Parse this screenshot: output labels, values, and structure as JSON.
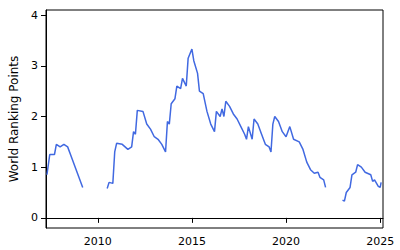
{
  "chart_data": {
    "type": "line",
    "y_label": "World Ranking Points",
    "color": "#4169e1",
    "xlim": [
      2007.25,
      2025.15
    ],
    "xticks": [
      2010,
      2015,
      2020,
      2025
    ],
    "ylim": [
      -0.2,
      4.1
    ],
    "yticks": [
      0,
      1,
      2,
      3,
      4
    ],
    "grid": false,
    "x": [
      2007.3,
      2007.45,
      2007.7,
      2007.8,
      2008.0,
      2008.2,
      2008.4,
      2008.6,
      2008.9,
      2009.2,
      2009.8,
      2010.5,
      2010.6,
      2010.8,
      2010.9,
      2011.0,
      2011.3,
      2011.6,
      2011.8,
      2011.9,
      2012.0,
      2012.1,
      2012.4,
      2012.6,
      2012.8,
      2013.0,
      2013.2,
      2013.4,
      2013.6,
      2013.7,
      2013.8,
      2013.9,
      2014.1,
      2014.2,
      2014.4,
      2014.5,
      2014.7,
      2014.8,
      2015.0,
      2015.1,
      2015.3,
      2015.4,
      2015.6,
      2015.8,
      2016.0,
      2016.2,
      2016.3,
      2016.5,
      2016.6,
      2016.7,
      2016.8,
      2017.0,
      2017.2,
      2017.4,
      2017.6,
      2017.8,
      2017.9,
      2018.0,
      2018.2,
      2018.3,
      2018.5,
      2018.7,
      2018.9,
      2019.1,
      2019.2,
      2019.3,
      2019.4,
      2019.6,
      2019.8,
      2020.0,
      2020.2,
      2020.4,
      2020.7,
      2020.9,
      2021.1,
      2021.3,
      2021.5,
      2021.7,
      2021.8,
      2022.0,
      2022.1,
      2022.5,
      2023.0,
      2023.1,
      2023.2,
      2023.4,
      2023.5,
      2023.7,
      2023.8,
      2024.0,
      2024.2,
      2024.5,
      2024.6,
      2024.7,
      2024.9,
      2025.0,
      2025.05
    ],
    "values": [
      0.85,
      1.25,
      1.25,
      1.45,
      1.4,
      1.45,
      1.4,
      1.2,
      0.9,
      0.6,
      null,
      0.58,
      0.7,
      0.68,
      1.3,
      1.47,
      1.45,
      1.35,
      1.4,
      1.7,
      1.65,
      2.12,
      2.1,
      1.85,
      1.75,
      1.6,
      1.55,
      1.45,
      1.3,
      1.9,
      1.85,
      2.25,
      2.35,
      2.6,
      2.55,
      2.75,
      2.6,
      3.15,
      3.33,
      3.1,
      2.85,
      2.5,
      2.45,
      2.1,
      1.85,
      1.7,
      2.1,
      2.0,
      2.15,
      2.0,
      2.3,
      2.2,
      2.05,
      1.95,
      1.8,
      1.65,
      1.55,
      1.8,
      1.55,
      1.95,
      1.85,
      1.65,
      1.45,
      1.4,
      1.3,
      1.85,
      2.0,
      1.9,
      1.7,
      1.6,
      1.8,
      1.55,
      1.5,
      1.35,
      1.1,
      0.95,
      0.88,
      0.9,
      0.8,
      0.75,
      0.6,
      null,
      0.35,
      0.33,
      0.5,
      0.6,
      0.85,
      0.9,
      1.05,
      1.0,
      0.9,
      0.85,
      0.72,
      0.75,
      0.62,
      0.6,
      0.7
    ]
  }
}
